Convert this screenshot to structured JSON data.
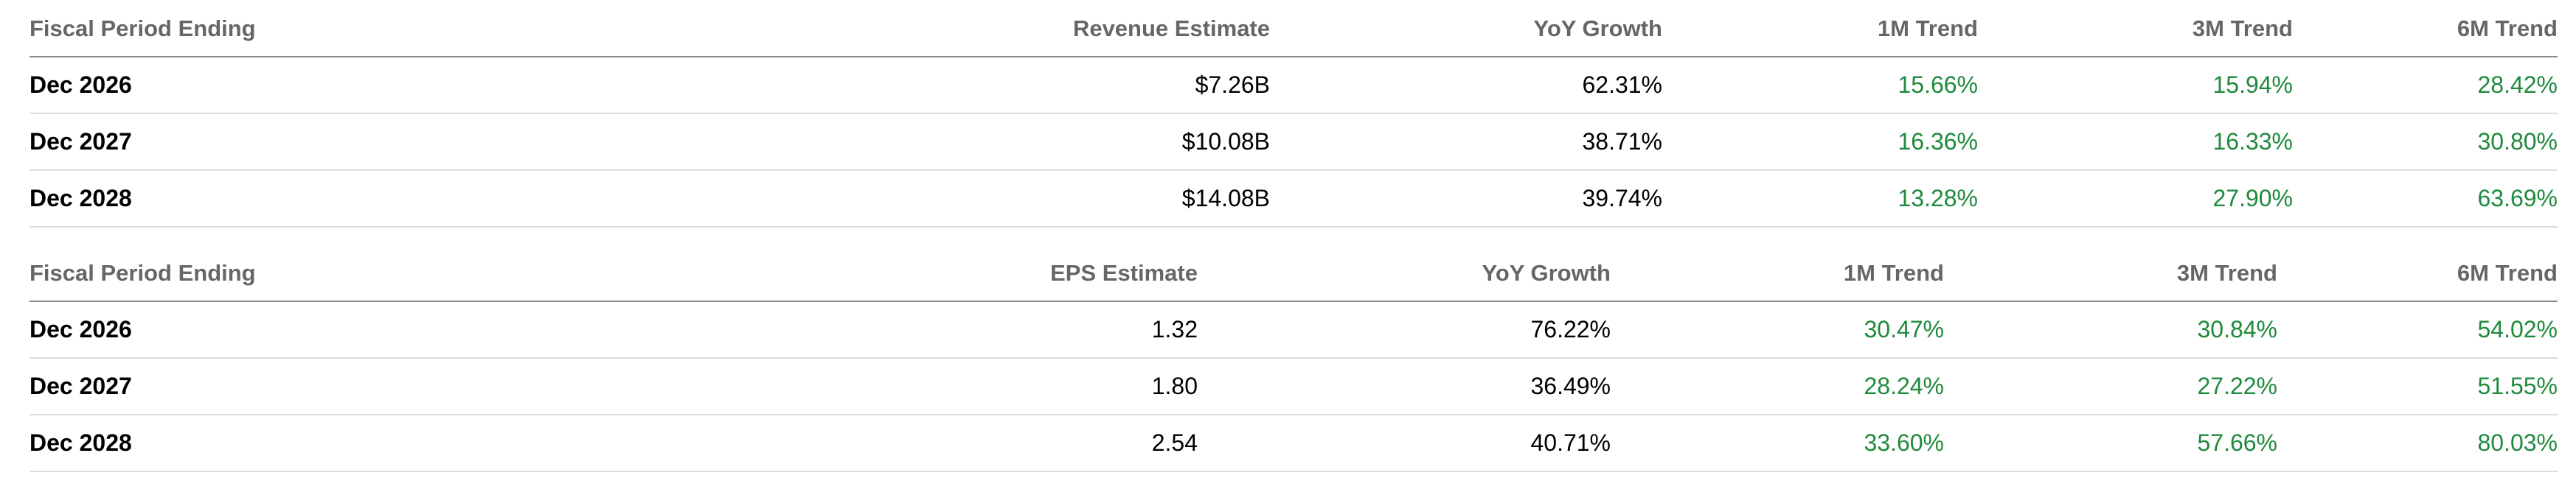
{
  "revenue_table": {
    "headers": [
      "Fiscal Period Ending",
      "Revenue Estimate",
      "YoY Growth",
      "1M Trend",
      "3M Trend",
      "6M Trend"
    ],
    "rows": [
      {
        "period": "Dec 2026",
        "estimate": "$7.26B",
        "yoy": "62.31%",
        "m1": "15.66%",
        "m3": "15.94%",
        "m6": "28.42%"
      },
      {
        "period": "Dec 2027",
        "estimate": "$10.08B",
        "yoy": "38.71%",
        "m1": "16.36%",
        "m3": "16.33%",
        "m6": "30.80%"
      },
      {
        "period": "Dec 2028",
        "estimate": "$14.08B",
        "yoy": "39.74%",
        "m1": "13.28%",
        "m3": "27.90%",
        "m6": "63.69%"
      }
    ]
  },
  "eps_table": {
    "headers": [
      "Fiscal Period Ending",
      "EPS Estimate",
      "YoY Growth",
      "1M Trend",
      "3M Trend",
      "6M Trend"
    ],
    "rows": [
      {
        "period": "Dec 2026",
        "estimate": "1.32",
        "yoy": "76.22%",
        "m1": "30.47%",
        "m3": "30.84%",
        "m6": "54.02%"
      },
      {
        "period": "Dec 2027",
        "estimate": "1.80",
        "yoy": "36.49%",
        "m1": "28.24%",
        "m3": "27.22%",
        "m6": "51.55%"
      },
      {
        "period": "Dec 2028",
        "estimate": "2.54",
        "yoy": "40.71%",
        "m1": "33.60%",
        "m3": "57.66%",
        "m6": "80.03%"
      }
    ]
  },
  "colors": {
    "header_text": "#666666",
    "trend_positive": "#1e8a3c",
    "row_divider": "#dcdcdc",
    "header_divider": "#8a8a8a"
  }
}
